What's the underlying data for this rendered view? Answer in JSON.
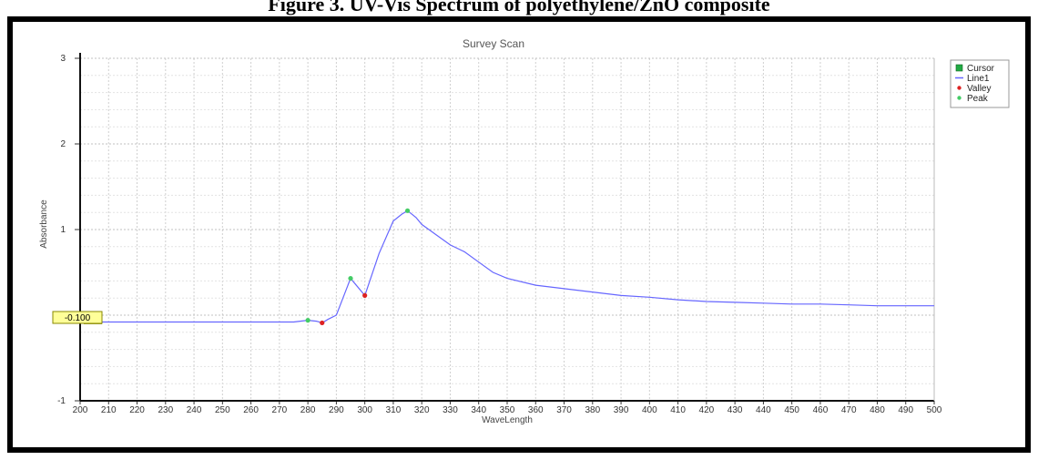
{
  "heading": "Figure 3. UV-Vis Spectrum of polyethylene/ZnO composite",
  "chart_data": {
    "type": "line",
    "title": "Survey Scan",
    "xlabel": "WaveLength",
    "ylabel": "Absorbance",
    "xlim": [
      200,
      500
    ],
    "ylim": [
      -1,
      3
    ],
    "x_ticks": [
      "200",
      "210",
      "220",
      "230",
      "240",
      "250",
      "260",
      "270",
      "280",
      "290",
      "300",
      "310",
      "320",
      "330",
      "340",
      "350",
      "360",
      "370",
      "380",
      "390",
      "400",
      "410",
      "420",
      "430",
      "440",
      "450",
      "460",
      "470",
      "480",
      "490",
      "500"
    ],
    "y_ticks": [
      "-1",
      "0",
      "1",
      "2",
      "3"
    ],
    "grid": true,
    "legend": {
      "position": "top-right",
      "entries": [
        {
          "name": "Cursor",
          "color": "#22aa44"
        },
        {
          "name": "Line1",
          "color": "#6666ff"
        },
        {
          "name": "Valley",
          "color": "#dd2222"
        },
        {
          "name": "Peak",
          "color": "#44cc66"
        }
      ]
    },
    "cursor_label": "-0.100",
    "cursor_value": -0.1,
    "series": [
      {
        "name": "Line1",
        "color": "#6666ff",
        "x": [
          200,
          220,
          240,
          260,
          270,
          275,
          280,
          283,
          285,
          287,
          290,
          295,
          300,
          305,
          310,
          313,
          315,
          318,
          320,
          325,
          330,
          335,
          340,
          345,
          350,
          360,
          370,
          380,
          390,
          400,
          410,
          420,
          430,
          440,
          450,
          460,
          470,
          480,
          490,
          500
        ],
        "y": [
          -0.08,
          -0.08,
          -0.08,
          -0.08,
          -0.08,
          -0.08,
          -0.06,
          -0.07,
          -0.09,
          -0.05,
          0.0,
          0.43,
          0.23,
          0.72,
          1.1,
          1.18,
          1.22,
          1.14,
          1.06,
          0.94,
          0.82,
          0.74,
          0.62,
          0.5,
          0.43,
          0.35,
          0.31,
          0.27,
          0.23,
          0.21,
          0.18,
          0.16,
          0.15,
          0.14,
          0.13,
          0.13,
          0.12,
          0.11,
          0.11,
          0.11
        ]
      }
    ],
    "peaks": [
      {
        "x": 315,
        "y": 1.22
      },
      {
        "x": 295,
        "y": 0.43
      },
      {
        "x": 280,
        "y": -0.06
      }
    ],
    "valleys": [
      {
        "x": 300,
        "y": 0.23
      },
      {
        "x": 285,
        "y": -0.09
      }
    ]
  }
}
